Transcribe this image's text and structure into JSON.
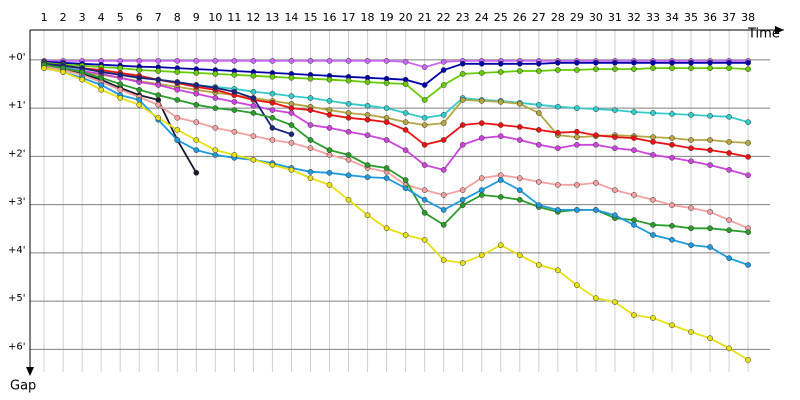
{
  "chart_data": {
    "type": "line",
    "x_label": "Time",
    "y_label": "Gap",
    "x": [
      1,
      2,
      3,
      4,
      5,
      6,
      7,
      8,
      9,
      10,
      11,
      12,
      13,
      14,
      15,
      16,
      17,
      18,
      19,
      20,
      21,
      22,
      23,
      24,
      25,
      26,
      27,
      28,
      29,
      30,
      31,
      32,
      33,
      34,
      35,
      36,
      37,
      38
    ],
    "xlim": [
      0.26,
      39.15
    ],
    "xticks": [
      1,
      2,
      3,
      4,
      5,
      6,
      7,
      8,
      9,
      10,
      11,
      12,
      13,
      14,
      15,
      16,
      17,
      18,
      19,
      20,
      21,
      22,
      23,
      24,
      25,
      26,
      27,
      28,
      29,
      30,
      31,
      32,
      33,
      34,
      35,
      36,
      37,
      38
    ],
    "ylim": [
      -0.62,
      6.47
    ],
    "yticks": [
      {
        "value": 0,
        "label": "+0'"
      },
      {
        "value": 1,
        "label": "+1'"
      },
      {
        "value": 2,
        "label": "+2'"
      },
      {
        "value": 3,
        "label": "+3'"
      },
      {
        "value": 4,
        "label": "+4'"
      },
      {
        "value": 5,
        "label": "+5'"
      },
      {
        "value": 6,
        "label": "+6'"
      }
    ],
    "grid": true,
    "series": [
      {
        "color": "#cc66ff",
        "values": [
          0.02,
          0.02,
          0.02,
          0.02,
          0.02,
          0.02,
          0.02,
          0.02,
          0.02,
          0.02,
          0.02,
          0.02,
          0.02,
          0.02,
          0.02,
          0.02,
          0.02,
          0.02,
          0.02,
          0.04,
          0.15,
          0.04,
          0.02,
          0.02,
          0.02,
          0.02,
          0.02,
          0.02,
          0.02,
          0.02,
          0.02,
          0.02,
          0.02,
          0.02,
          0.02,
          0.02,
          0.02,
          0.02
        ]
      },
      {
        "color": "#0000aa",
        "values": [
          0.04,
          0.06,
          0.08,
          0.1,
          0.12,
          0.14,
          0.15,
          0.17,
          0.19,
          0.21,
          0.23,
          0.25,
          0.27,
          0.29,
          0.31,
          0.33,
          0.35,
          0.37,
          0.39,
          0.41,
          0.52,
          0.21,
          0.08,
          0.08,
          0.08,
          0.08,
          0.08,
          0.06,
          0.06,
          0.06,
          0.06,
          0.06,
          0.06,
          0.06,
          0.06,
          0.06,
          0.06,
          0.06
        ]
      },
      {
        "color": "#66cc00",
        "values": [
          0.06,
          0.1,
          0.12,
          0.15,
          0.17,
          0.21,
          0.23,
          0.25,
          0.27,
          0.29,
          0.31,
          0.33,
          0.35,
          0.37,
          0.39,
          0.41,
          0.43,
          0.46,
          0.48,
          0.5,
          0.83,
          0.52,
          0.29,
          0.27,
          0.25,
          0.23,
          0.23,
          0.21,
          0.21,
          0.19,
          0.19,
          0.19,
          0.17,
          0.17,
          0.17,
          0.17,
          0.17,
          0.19
        ]
      },
      {
        "color": "#33cccc",
        "values": [
          0.1,
          0.14,
          0.19,
          0.23,
          0.29,
          0.35,
          0.41,
          0.46,
          0.52,
          0.56,
          0.6,
          0.66,
          0.7,
          0.75,
          0.79,
          0.85,
          0.91,
          0.95,
          1.0,
          1.1,
          1.2,
          1.14,
          0.79,
          0.83,
          0.85,
          0.89,
          0.93,
          0.97,
          1.0,
          1.02,
          1.04,
          1.08,
          1.1,
          1.12,
          1.14,
          1.16,
          1.18,
          1.29
        ]
      },
      {
        "color": "#b5a642",
        "values": [
          0.14,
          0.19,
          0.25,
          0.31,
          0.37,
          0.44,
          0.5,
          0.56,
          0.62,
          0.68,
          0.73,
          0.79,
          0.85,
          0.91,
          0.97,
          1.04,
          1.1,
          1.14,
          1.2,
          1.29,
          1.35,
          1.31,
          0.83,
          0.85,
          0.87,
          0.91,
          1.1,
          1.56,
          1.6,
          1.58,
          1.56,
          1.58,
          1.6,
          1.62,
          1.66,
          1.66,
          1.7,
          1.72
        ]
      },
      {
        "color": "#ee1111",
        "values": [
          0.08,
          0.12,
          0.17,
          0.21,
          0.27,
          0.33,
          0.41,
          0.48,
          0.56,
          0.62,
          0.73,
          0.83,
          0.89,
          1.0,
          1.04,
          1.14,
          1.2,
          1.24,
          1.29,
          1.45,
          1.76,
          1.66,
          1.35,
          1.31,
          1.35,
          1.39,
          1.45,
          1.51,
          1.49,
          1.56,
          1.6,
          1.62,
          1.7,
          1.76,
          1.83,
          1.87,
          1.93,
          2.01
        ]
      },
      {
        "color": "#cc44dd",
        "values": [
          0.12,
          0.17,
          0.23,
          0.29,
          0.37,
          0.46,
          0.52,
          0.62,
          0.7,
          0.79,
          0.87,
          0.95,
          1.04,
          1.1,
          1.35,
          1.41,
          1.49,
          1.56,
          1.66,
          1.87,
          2.18,
          2.28,
          1.76,
          1.62,
          1.58,
          1.66,
          1.76,
          1.83,
          1.76,
          1.76,
          1.83,
          1.87,
          1.97,
          2.03,
          2.1,
          2.18,
          2.28,
          2.39
        ]
      },
      {
        "color": "#1a1a2e",
        "values": [
          0.12,
          0.21,
          0.29,
          0.41,
          0.58,
          0.73,
          0.83,
          1.66,
          2.34,
          null,
          null,
          null,
          null,
          null,
          null,
          null,
          null,
          null,
          null,
          null,
          null,
          null,
          null,
          null,
          null,
          null,
          null,
          null,
          null,
          null,
          null,
          null,
          null,
          null,
          null,
          null,
          null,
          null
        ]
      },
      {
        "color": "#1a237e",
        "values": [
          0.08,
          0.12,
          0.17,
          0.25,
          0.31,
          0.37,
          0.41,
          0.46,
          0.52,
          0.58,
          0.66,
          0.79,
          1.41,
          1.54,
          null,
          null,
          null,
          null,
          null,
          null,
          null,
          null,
          null,
          null,
          null,
          null,
          null,
          null,
          null,
          null,
          null,
          null,
          null,
          null,
          null,
          null,
          null,
          null
        ]
      },
      {
        "color": "#f4a0a0",
        "values": [
          0.12,
          0.21,
          0.31,
          0.46,
          0.62,
          0.77,
          0.93,
          1.2,
          1.29,
          1.41,
          1.49,
          1.58,
          1.66,
          1.72,
          1.83,
          1.97,
          2.07,
          2.24,
          2.32,
          2.59,
          2.7,
          2.8,
          2.7,
          2.45,
          2.39,
          2.45,
          2.53,
          2.59,
          2.59,
          2.55,
          2.7,
          2.8,
          2.9,
          3.01,
          3.07,
          3.15,
          3.32,
          3.49
        ]
      },
      {
        "color": "#2a9d2a",
        "values": [
          0.1,
          0.17,
          0.25,
          0.37,
          0.5,
          0.62,
          0.73,
          0.83,
          0.93,
          1.0,
          1.04,
          1.1,
          1.2,
          1.35,
          1.66,
          1.87,
          1.97,
          2.18,
          2.24,
          2.49,
          3.17,
          3.42,
          3.01,
          2.8,
          2.84,
          2.9,
          3.05,
          3.15,
          3.11,
          3.11,
          3.28,
          3.32,
          3.42,
          3.44,
          3.49,
          3.49,
          3.53,
          3.57
        ]
      },
      {
        "color": "#1e9be0",
        "values": [
          0.17,
          0.25,
          0.37,
          0.52,
          0.73,
          0.83,
          1.24,
          1.66,
          1.87,
          1.97,
          2.03,
          2.07,
          2.14,
          2.24,
          2.32,
          2.34,
          2.39,
          2.43,
          2.45,
          2.66,
          2.9,
          3.11,
          2.9,
          2.7,
          2.49,
          2.7,
          3.01,
          3.11,
          3.11,
          3.11,
          3.22,
          3.42,
          3.63,
          3.73,
          3.84,
          3.88,
          4.11,
          4.25
        ]
      },
      {
        "color": "#e8e010",
        "values": [
          0.17,
          0.25,
          0.41,
          0.62,
          0.79,
          0.93,
          1.2,
          1.45,
          1.66,
          1.87,
          1.97,
          2.07,
          2.18,
          2.28,
          2.45,
          2.59,
          2.9,
          3.22,
          3.49,
          3.63,
          3.73,
          4.15,
          4.21,
          4.05,
          3.84,
          4.05,
          4.25,
          4.36,
          4.67,
          4.94,
          5.02,
          5.29,
          5.35,
          5.5,
          5.64,
          5.77,
          5.98,
          6.22
        ]
      }
    ]
  }
}
